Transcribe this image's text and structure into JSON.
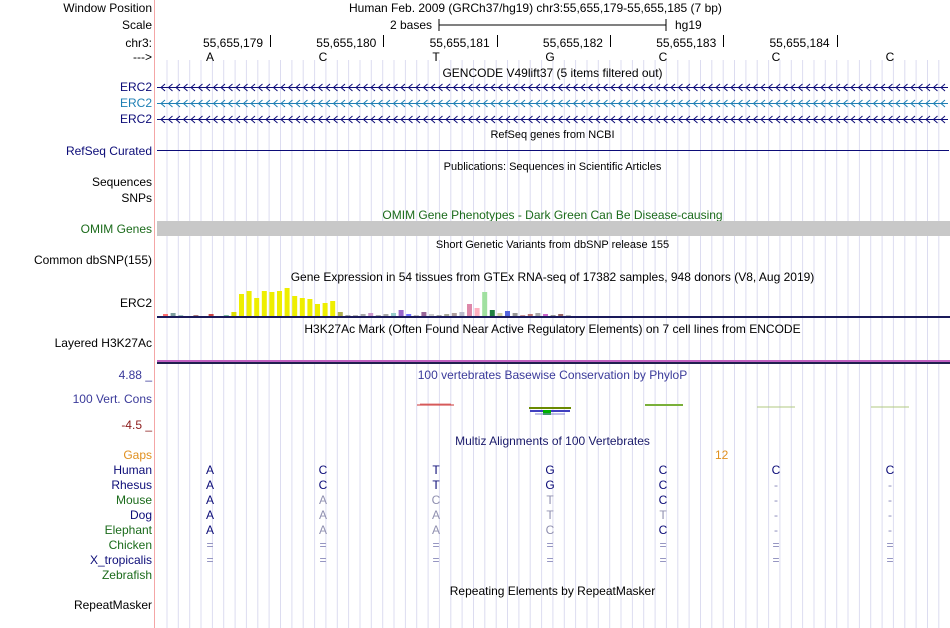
{
  "header": {
    "window_position_label": "Window Position",
    "scale_label": "Scale",
    "chrom_label": "chr3:",
    "strand_label": "--->",
    "assembly_text": "Human Feb. 2009 (GRCh37/hg19)   chr3:55,655,179-55,655,185 (7 bp)",
    "scale_text": "2 bases",
    "scale_db": "hg19"
  },
  "ruler": {
    "positions": [
      "55,655,179",
      "55,655,180",
      "55,655,181",
      "55,655,182",
      "55,655,183",
      "55,655,184"
    ],
    "bases": [
      "A",
      "C",
      "T",
      "G",
      "C",
      "C",
      "C"
    ]
  },
  "tracks": {
    "gencode": {
      "title": "GENCODE V49lift37 (5 items filtered out)",
      "items": [
        "ERC2",
        "ERC2",
        "ERC2"
      ],
      "colors": [
        "#0c0c78",
        "#1e7fb4",
        "#0c0c78"
      ]
    },
    "refseq": {
      "title": "RefSeq genes from NCBI",
      "label": "RefSeq Curated",
      "color": "#0c0c78"
    },
    "pubs": {
      "title": "Publications: Sequences in Scientific Articles",
      "labels": [
        "Sequences",
        "SNPs"
      ]
    },
    "omim": {
      "title": "OMIM Gene Phenotypes - Dark Green Can Be Disease-causing",
      "label": "OMIM Genes",
      "color": "#1b6b1b"
    },
    "dbsnp": {
      "title": "Short Genetic Variants from dbSNP release 155",
      "label": "Common dbSNP(155)"
    },
    "gtex": {
      "title": "Gene Expression in 54 tissues from GTEx RNA-seq of 17382 samples, 948 donors (V8, Aug 2019)",
      "label": "ERC2"
    },
    "h3k27ac": {
      "title": "H3K27Ac Mark (Often Found Near Active Regulatory Elements) on 7 cell lines from ENCODE",
      "label": "Layered H3K27Ac"
    },
    "phylop": {
      "title": "100 vertebrates Basewise Conservation by PhyloP",
      "label": "100 Vert. Cons",
      "max": "4.88 _",
      "min": "-4.5 _",
      "color": "#3a3a9a",
      "min_color": "#8b1a1a"
    },
    "multiz": {
      "title": "Multiz Alignments of 100 Vertebrates",
      "gaps_label": "Gaps",
      "gap_count": "12",
      "species": [
        "Human",
        "Rhesus",
        "Mouse",
        "Dog",
        "Elephant",
        "Chicken",
        "X_tropicalis",
        "Zebrafish"
      ],
      "rows": [
        [
          "A",
          "C",
          "T",
          "G",
          "C",
          "C",
          "C"
        ],
        [
          "A",
          "C",
          "T",
          "G",
          "C",
          "-",
          "-"
        ],
        [
          "A",
          "A",
          "C",
          "T",
          "C",
          "-",
          "-"
        ],
        [
          "A",
          "A",
          "A",
          "T",
          "T",
          "-",
          "-"
        ],
        [
          "A",
          "A",
          "A",
          "C",
          "C",
          "-",
          "-"
        ],
        [
          "=",
          "=",
          "=",
          "=",
          "=",
          "=",
          "="
        ],
        [
          "=",
          "=",
          "=",
          "=",
          "=",
          "=",
          "="
        ],
        [
          "",
          "",
          "",
          "",
          "",
          "",
          ""
        ]
      ]
    },
    "rmsk": {
      "title": "Repeating Elements by RepeatMasker",
      "label": "RepeatMasker"
    }
  }
}
